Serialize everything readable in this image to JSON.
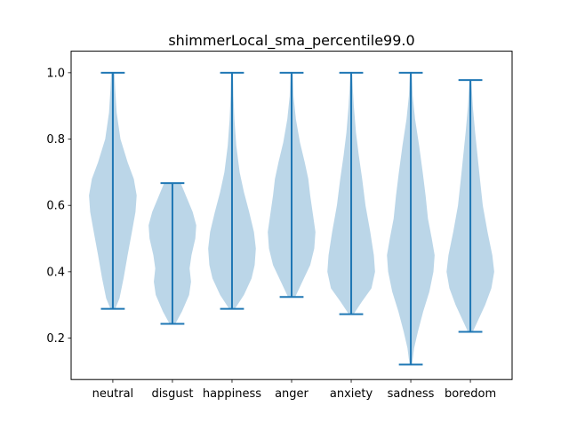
{
  "chart_data": {
    "type": "violin",
    "title": "shimmerLocal_sma_percentile99.0",
    "xlabel": "",
    "ylabel": "",
    "categories": [
      "neutral",
      "disgust",
      "happiness",
      "anger",
      "anxiety",
      "sadness",
      "boredom"
    ],
    "ylim": [
      0.075,
      1.065
    ],
    "yticks": [
      0.2,
      0.4,
      0.6,
      0.8,
      1.0
    ],
    "ytick_labels": [
      "0.2",
      "0.4",
      "0.6",
      "0.8",
      "1.0"
    ],
    "grid": false,
    "colors": {
      "violin_fill": "#1f77b4",
      "violin_opacity": 0.3,
      "line": "#1f77b4"
    },
    "series": [
      {
        "category": "neutral",
        "min": 0.288,
        "max": 1.0,
        "density": [
          [
            0.288,
            0.1
          ],
          [
            0.32,
            0.28
          ],
          [
            0.38,
            0.45
          ],
          [
            0.45,
            0.62
          ],
          [
            0.52,
            0.8
          ],
          [
            0.58,
            0.95
          ],
          [
            0.63,
            1.0
          ],
          [
            0.68,
            0.88
          ],
          [
            0.73,
            0.62
          ],
          [
            0.8,
            0.32
          ],
          [
            0.88,
            0.16
          ],
          [
            0.95,
            0.1
          ],
          [
            1.0,
            0.07
          ]
        ]
      },
      {
        "category": "disgust",
        "min": 0.243,
        "max": 0.667,
        "density": [
          [
            0.243,
            0.12
          ],
          [
            0.28,
            0.4
          ],
          [
            0.33,
            0.7
          ],
          [
            0.37,
            0.78
          ],
          [
            0.41,
            0.72
          ],
          [
            0.45,
            0.8
          ],
          [
            0.5,
            0.96
          ],
          [
            0.54,
            1.0
          ],
          [
            0.58,
            0.85
          ],
          [
            0.62,
            0.62
          ],
          [
            0.667,
            0.35
          ]
        ]
      },
      {
        "category": "happiness",
        "min": 0.288,
        "max": 1.0,
        "density": [
          [
            0.288,
            0.12
          ],
          [
            0.33,
            0.5
          ],
          [
            0.38,
            0.82
          ],
          [
            0.42,
            0.95
          ],
          [
            0.47,
            1.0
          ],
          [
            0.52,
            0.92
          ],
          [
            0.58,
            0.72
          ],
          [
            0.64,
            0.5
          ],
          [
            0.7,
            0.32
          ],
          [
            0.78,
            0.18
          ],
          [
            0.86,
            0.1
          ],
          [
            0.93,
            0.06
          ],
          [
            1.0,
            0.04
          ]
        ]
      },
      {
        "category": "anger",
        "min": 0.324,
        "max": 1.0,
        "density": [
          [
            0.324,
            0.15
          ],
          [
            0.37,
            0.45
          ],
          [
            0.42,
            0.78
          ],
          [
            0.47,
            0.95
          ],
          [
            0.52,
            1.0
          ],
          [
            0.57,
            0.9
          ],
          [
            0.63,
            0.78
          ],
          [
            0.68,
            0.7
          ],
          [
            0.73,
            0.55
          ],
          [
            0.79,
            0.35
          ],
          [
            0.86,
            0.18
          ],
          [
            0.93,
            0.08
          ],
          [
            1.0,
            0.05
          ]
        ]
      },
      {
        "category": "anxiety",
        "min": 0.272,
        "max": 1.0,
        "density": [
          [
            0.272,
            0.1
          ],
          [
            0.31,
            0.45
          ],
          [
            0.35,
            0.85
          ],
          [
            0.4,
            1.0
          ],
          [
            0.45,
            0.95
          ],
          [
            0.52,
            0.8
          ],
          [
            0.6,
            0.6
          ],
          [
            0.68,
            0.46
          ],
          [
            0.75,
            0.32
          ],
          [
            0.82,
            0.2
          ],
          [
            0.9,
            0.11
          ],
          [
            0.95,
            0.07
          ],
          [
            1.0,
            0.04
          ]
        ]
      },
      {
        "category": "sadness",
        "min": 0.12,
        "max": 1.0,
        "density": [
          [
            0.12,
            0.05
          ],
          [
            0.17,
            0.14
          ],
          [
            0.22,
            0.3
          ],
          [
            0.28,
            0.52
          ],
          [
            0.34,
            0.78
          ],
          [
            0.4,
            0.95
          ],
          [
            0.45,
            1.0
          ],
          [
            0.5,
            0.88
          ],
          [
            0.56,
            0.72
          ],
          [
            0.63,
            0.62
          ],
          [
            0.7,
            0.5
          ],
          [
            0.78,
            0.35
          ],
          [
            0.86,
            0.18
          ],
          [
            0.93,
            0.08
          ],
          [
            1.0,
            0.04
          ]
        ]
      },
      {
        "category": "boredom",
        "min": 0.219,
        "max": 0.978,
        "density": [
          [
            0.219,
            0.1
          ],
          [
            0.25,
            0.3
          ],
          [
            0.3,
            0.62
          ],
          [
            0.35,
            0.88
          ],
          [
            0.4,
            1.0
          ],
          [
            0.45,
            0.92
          ],
          [
            0.52,
            0.72
          ],
          [
            0.6,
            0.52
          ],
          [
            0.68,
            0.4
          ],
          [
            0.75,
            0.3
          ],
          [
            0.82,
            0.2
          ],
          [
            0.9,
            0.1
          ],
          [
            0.978,
            0.04
          ]
        ]
      }
    ]
  }
}
